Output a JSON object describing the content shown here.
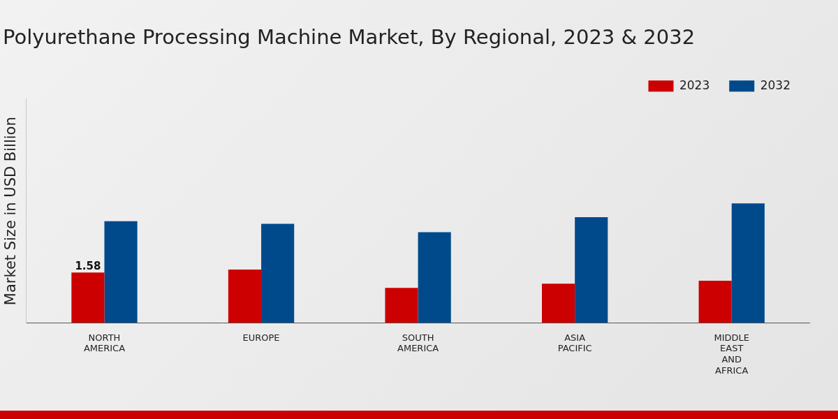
{
  "chart_data": {
    "type": "bar",
    "title": "Polyurethane Processing Machine Market, By Regional, 2023 & 2032",
    "y_label": "Market Size in USD Billion",
    "categories": [
      "NORTH AMERICA",
      "EUROPE",
      "SOUTH AMERICA",
      "ASIA PACIFIC",
      "MIDDLE EAST AND AFRICA"
    ],
    "series": [
      {
        "name": "2023",
        "color": "#cc0000",
        "values": [
          1.58,
          1.67,
          1.1,
          1.23,
          1.32
        ],
        "value_labels": [
          "1.58",
          null,
          null,
          null,
          null
        ]
      },
      {
        "name": "2032",
        "color": "#004a8c",
        "values": [
          3.18,
          3.1,
          2.84,
          3.31,
          3.74
        ]
      }
    ],
    "ylim": [
      0,
      7
    ],
    "grid": false,
    "legend": "top-right",
    "tick_labels": "x"
  }
}
